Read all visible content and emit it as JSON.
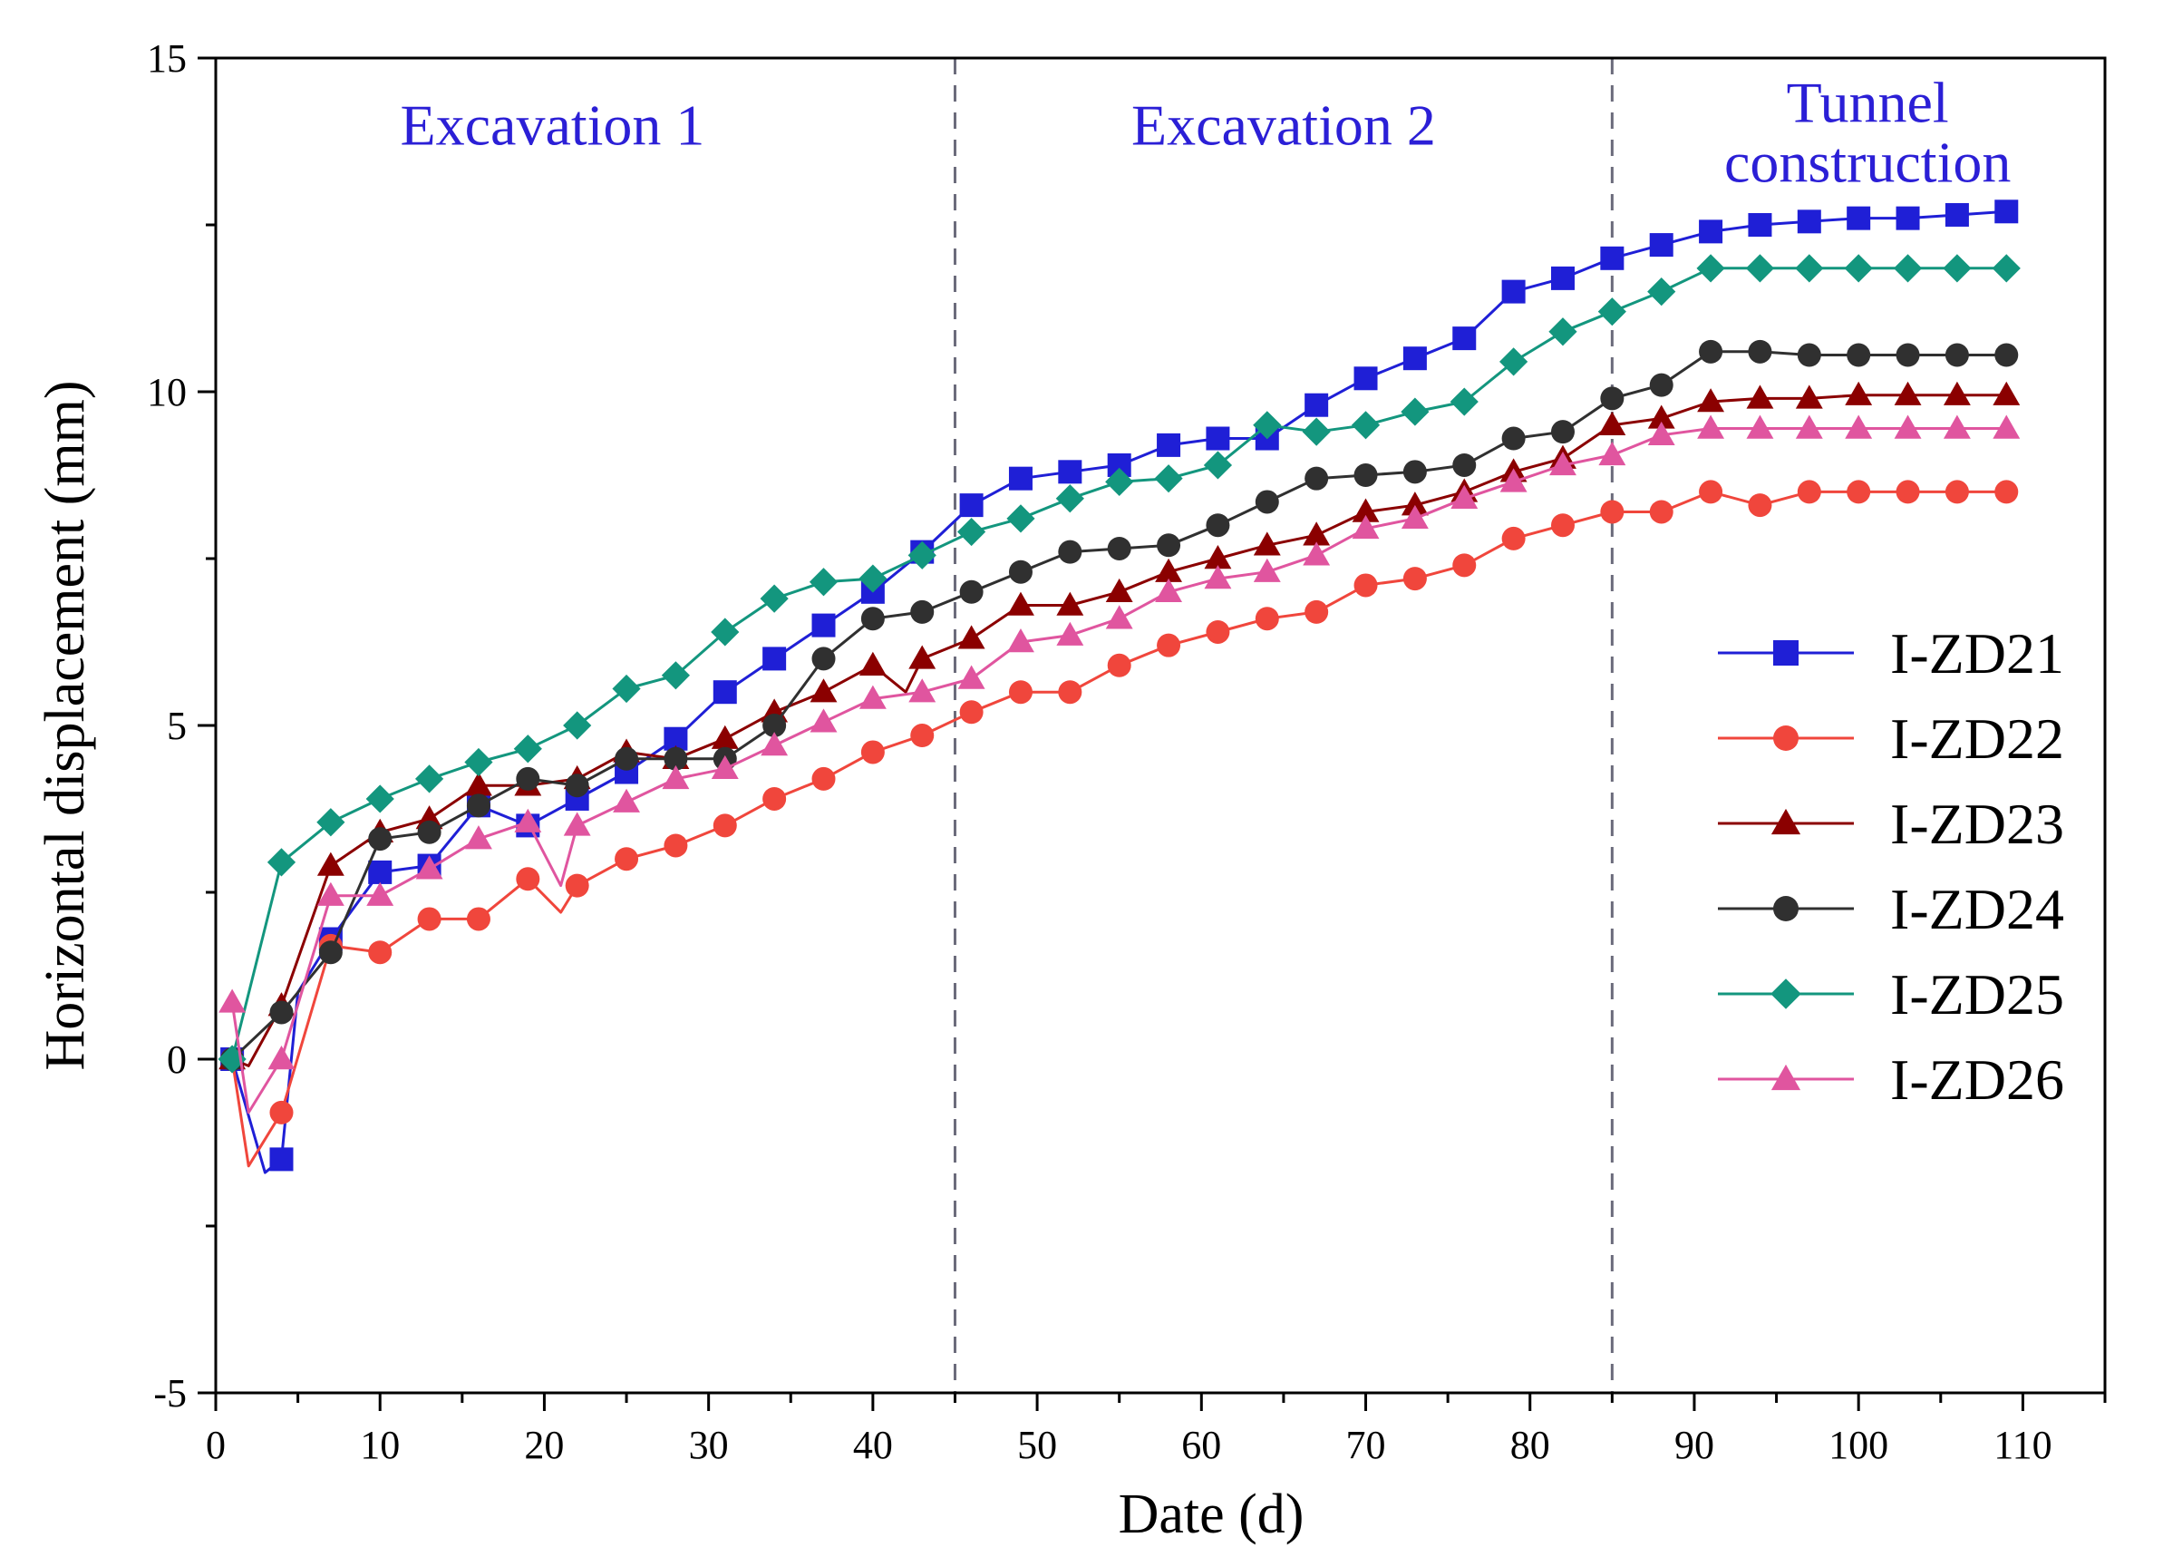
{
  "chart_data": {
    "type": "line",
    "xlabel": "Date (d)",
    "ylabel": "Horizontal displacement (mm)",
    "xlim": [
      0,
      115
    ],
    "ylim": [
      -5,
      15
    ],
    "xticks": [
      0,
      10,
      20,
      30,
      40,
      50,
      60,
      70,
      80,
      90,
      100,
      110
    ],
    "yticks": [
      -5,
      0,
      5,
      10,
      15
    ],
    "phase_dividers": [
      45,
      85
    ],
    "phases": [
      {
        "label": "Excavation 1",
        "x": 20.5,
        "y": 13.7
      },
      {
        "label": "Excavation 2",
        "x": 65,
        "y": 13.7
      },
      {
        "label": "Tunnel construction",
        "x": 100,
        "y": 13.7
      }
    ],
    "legend_position": "right",
    "series": [
      {
        "name": "I-ZD21",
        "color": "#1f1fd6",
        "marker": "square",
        "x": [
          1,
          3,
          4,
          5,
          7,
          10,
          13,
          16,
          19,
          22,
          25,
          28,
          31,
          34,
          37,
          40,
          43,
          46,
          49,
          52,
          55,
          58,
          61,
          64,
          67,
          70,
          73,
          76,
          79,
          82,
          85,
          88,
          91,
          94,
          97,
          100,
          103,
          106,
          109
        ],
        "y": [
          0,
          -1.7,
          -1.5,
          1.0,
          1.8,
          2.8,
          2.9,
          3.8,
          3.5,
          3.9,
          4.3,
          4.8,
          5.5,
          6.0,
          6.5,
          7.0,
          7.6,
          8.3,
          8.7,
          8.8,
          8.9,
          9.2,
          9.3,
          9.3,
          9.8,
          10.2,
          10.5,
          10.8,
          11.5,
          11.7,
          12.0,
          12.2,
          12.4,
          12.5,
          12.55,
          12.6,
          12.6,
          12.65,
          12.7
        ],
        "markers": [
          0,
          2,
          4,
          5,
          6,
          7,
          8,
          9,
          10,
          11,
          12,
          13,
          14,
          15,
          16,
          17,
          18,
          19,
          20,
          21,
          22,
          23,
          24,
          25,
          26,
          27,
          28,
          29,
          30,
          31,
          32,
          33,
          34,
          35,
          36,
          37,
          38
        ]
      },
      {
        "name": "I-ZD22",
        "color": "#f0463c",
        "marker": "circle",
        "x": [
          1,
          2,
          4,
          7,
          10,
          13,
          16,
          19,
          21,
          22,
          25,
          28,
          31,
          34,
          37,
          40,
          43,
          46,
          49,
          52,
          55,
          58,
          61,
          64,
          67,
          70,
          73,
          76,
          79,
          82,
          85,
          88,
          91,
          94,
          97,
          100,
          103,
          106,
          109
        ],
        "y": [
          0,
          -1.6,
          -0.8,
          1.7,
          1.6,
          2.1,
          2.1,
          2.7,
          2.2,
          2.6,
          3.0,
          3.2,
          3.5,
          3.9,
          4.2,
          4.6,
          4.85,
          5.2,
          5.5,
          5.5,
          5.9,
          6.2,
          6.4,
          6.6,
          6.7,
          7.1,
          7.2,
          7.4,
          7.8,
          8.0,
          8.2,
          8.2,
          8.5,
          8.3,
          8.5,
          8.5,
          8.5,
          8.5,
          8.5
        ],
        "markers": [
          0,
          2,
          3,
          4,
          5,
          6,
          7,
          9,
          10,
          11,
          12,
          13,
          14,
          15,
          16,
          17,
          18,
          19,
          20,
          21,
          22,
          23,
          24,
          25,
          26,
          27,
          28,
          29,
          30,
          31,
          32,
          33,
          34,
          35,
          36,
          37,
          38
        ]
      },
      {
        "name": "I-ZD23",
        "color": "#8b0000",
        "marker": "triangle",
        "x": [
          1,
          2,
          4,
          7,
          10,
          13,
          16,
          19,
          22,
          25,
          28,
          31,
          34,
          37,
          40,
          42,
          43,
          46,
          49,
          52,
          55,
          58,
          61,
          64,
          67,
          70,
          73,
          76,
          79,
          82,
          85,
          88,
          91,
          94,
          97,
          100,
          103,
          106,
          109
        ],
        "y": [
          0,
          -0.1,
          0.8,
          2.9,
          3.4,
          3.6,
          4.1,
          4.1,
          4.2,
          4.6,
          4.5,
          4.8,
          5.2,
          5.5,
          5.9,
          5.5,
          6.0,
          6.3,
          6.8,
          6.8,
          7.0,
          7.3,
          7.5,
          7.7,
          7.85,
          8.2,
          8.3,
          8.5,
          8.8,
          9.0,
          9.5,
          9.6,
          9.85,
          9.9,
          9.9,
          9.95,
          9.95,
          9.95,
          9.95
        ],
        "markers": [
          0,
          2,
          3,
          4,
          5,
          6,
          7,
          8,
          9,
          10,
          11,
          12,
          13,
          14,
          16,
          17,
          18,
          19,
          20,
          21,
          22,
          23,
          24,
          25,
          26,
          27,
          28,
          29,
          30,
          31,
          32,
          33,
          34,
          35,
          36,
          37,
          38
        ]
      },
      {
        "name": "I-ZD24",
        "color": "#303030",
        "marker": "circle",
        "x": [
          1,
          4,
          7,
          10,
          13,
          16,
          19,
          22,
          25,
          28,
          31,
          34,
          37,
          40,
          43,
          46,
          49,
          52,
          55,
          58,
          61,
          64,
          67,
          70,
          73,
          76,
          79,
          82,
          85,
          88,
          91,
          94,
          97,
          100,
          103,
          106,
          109
        ],
        "y": [
          0,
          0.7,
          1.6,
          3.3,
          3.4,
          3.8,
          4.2,
          4.1,
          4.5,
          4.5,
          4.5,
          5.0,
          6.0,
          6.6,
          6.7,
          7.0,
          7.3,
          7.6,
          7.65,
          7.7,
          8.0,
          8.35,
          8.7,
          8.75,
          8.8,
          8.9,
          9.3,
          9.4,
          9.9,
          10.1,
          10.6,
          10.6,
          10.55,
          10.55,
          10.55,
          10.55,
          10.55
        ],
        "markers": [
          0,
          1,
          2,
          3,
          4,
          5,
          6,
          7,
          8,
          9,
          10,
          11,
          12,
          13,
          14,
          15,
          16,
          17,
          18,
          19,
          20,
          21,
          22,
          23,
          24,
          25,
          26,
          27,
          28,
          29,
          30,
          31,
          32,
          33,
          34,
          35,
          36
        ]
      },
      {
        "name": "I-ZD25",
        "color": "#13967e",
        "marker": "diamond",
        "x": [
          1,
          4,
          7,
          10,
          13,
          16,
          19,
          22,
          25,
          28,
          31,
          34,
          37,
          40,
          43,
          46,
          49,
          52,
          55,
          58,
          61,
          64,
          67,
          70,
          73,
          76,
          79,
          82,
          85,
          88,
          91,
          94,
          97,
          100,
          103,
          106,
          109
        ],
        "y": [
          0,
          2.95,
          3.55,
          3.9,
          4.2,
          4.45,
          4.65,
          5.0,
          5.55,
          5.75,
          6.4,
          6.9,
          7.15,
          7.2,
          7.55,
          7.9,
          8.1,
          8.4,
          8.65,
          8.7,
          8.9,
          9.5,
          9.4,
          9.5,
          9.7,
          9.85,
          10.45,
          10.9,
          11.2,
          11.5,
          11.85,
          11.85,
          11.85,
          11.85,
          11.85,
          11.85,
          11.85
        ],
        "markers": [
          0,
          1,
          2,
          3,
          4,
          5,
          6,
          7,
          8,
          9,
          10,
          11,
          12,
          13,
          14,
          15,
          16,
          17,
          18,
          19,
          20,
          21,
          22,
          23,
          24,
          25,
          26,
          27,
          28,
          29,
          30,
          31,
          32,
          33,
          34,
          35,
          36
        ]
      },
      {
        "name": "I-ZD26",
        "color": "#e0559f",
        "marker": "triangle",
        "x": [
          1,
          2,
          4,
          7,
          10,
          13,
          16,
          19,
          21,
          22,
          25,
          28,
          31,
          34,
          37,
          40,
          43,
          46,
          49,
          52,
          55,
          58,
          61,
          64,
          67,
          70,
          73,
          76,
          79,
          82,
          85,
          88,
          91,
          94,
          97,
          100,
          103,
          106,
          109
        ],
        "y": [
          0.85,
          -0.8,
          0.0,
          2.45,
          2.45,
          2.85,
          3.3,
          3.55,
          2.6,
          3.5,
          3.85,
          4.2,
          4.35,
          4.7,
          5.05,
          5.4,
          5.5,
          5.7,
          6.25,
          6.35,
          6.6,
          7.0,
          7.2,
          7.3,
          7.55,
          7.95,
          8.1,
          8.4,
          8.65,
          8.9,
          9.05,
          9.35,
          9.45,
          9.45,
          9.45,
          9.45,
          9.45,
          9.45,
          9.45
        ],
        "markers": [
          0,
          2,
          3,
          4,
          5,
          6,
          7,
          9,
          10,
          11,
          12,
          13,
          14,
          15,
          16,
          17,
          18,
          19,
          20,
          21,
          22,
          23,
          24,
          25,
          26,
          27,
          28,
          29,
          30,
          31,
          32,
          33,
          34,
          35,
          36,
          37,
          38
        ]
      }
    ]
  }
}
